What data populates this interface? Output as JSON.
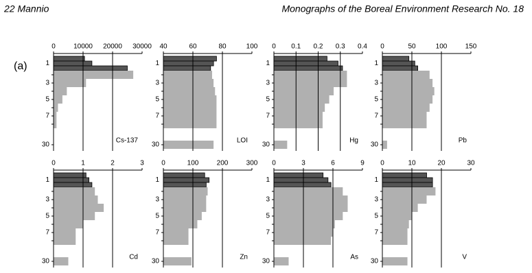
{
  "header": {
    "left": "22  Mannio",
    "right": "Monographs of the Boreal Environment Research No. 18"
  },
  "panel_label": "(a)",
  "chart_data": [
    {
      "type": "bar",
      "horizontal": true,
      "label": "Cs-137",
      "categories": [
        null,
        "1",
        null,
        null,
        "3",
        null,
        "5",
        null,
        "7",
        null,
        "30"
      ],
      "values": [
        10500,
        13000,
        25000,
        27000,
        11000,
        4500,
        3000,
        1500,
        1000,
        1000,
        0
      ],
      "colors": [
        "#555555",
        "#555555",
        "#555555",
        "#b0b0b0",
        "#b0b0b0",
        "#b0b0b0",
        "#b0b0b0",
        "#b0b0b0",
        "#b0b0b0",
        "#b0b0b0",
        "#b0b0b0"
      ],
      "xlim": [
        0,
        30000
      ],
      "xticks": [
        0,
        10000,
        20000,
        30000
      ],
      "grid": true
    },
    {
      "type": "bar",
      "horizontal": true,
      "label": "LOI",
      "categories": [
        null,
        "1",
        null,
        null,
        "3",
        null,
        "5",
        null,
        "7",
        null,
        "30"
      ],
      "values": [
        76,
        74,
        72,
        73,
        74,
        75,
        76,
        76,
        76,
        76,
        74
      ],
      "colors": [
        "#555555",
        "#555555",
        "#555555",
        "#b0b0b0",
        "#b0b0b0",
        "#b0b0b0",
        "#b0b0b0",
        "#b0b0b0",
        "#b0b0b0",
        "#b0b0b0",
        "#b0b0b0"
      ],
      "xlim": [
        40,
        100
      ],
      "xticks": [
        40,
        60,
        80,
        100
      ],
      "grid": true
    },
    {
      "type": "bar",
      "horizontal": true,
      "label": "Hg",
      "categories": [
        null,
        "1",
        null,
        null,
        "3",
        null,
        "5",
        null,
        "7",
        null,
        "30"
      ],
      "values": [
        0.24,
        0.29,
        0.31,
        0.33,
        0.33,
        0.27,
        0.25,
        0.23,
        0.22,
        0.22,
        0.06
      ],
      "colors": [
        "#555555",
        "#555555",
        "#555555",
        "#b0b0b0",
        "#b0b0b0",
        "#b0b0b0",
        "#b0b0b0",
        "#b0b0b0",
        "#b0b0b0",
        "#b0b0b0",
        "#b0b0b0"
      ],
      "xlim": [
        0,
        0.4
      ],
      "xticks": [
        0,
        0.1,
        0.2,
        0.3,
        0.4
      ],
      "grid": true
    },
    {
      "type": "bar",
      "horizontal": true,
      "label": "Pb",
      "categories": [
        null,
        "1",
        null,
        null,
        "3",
        null,
        "5",
        null,
        "7",
        null,
        "30"
      ],
      "values": [
        45,
        55,
        60,
        80,
        85,
        88,
        85,
        80,
        75,
        75,
        8
      ],
      "colors": [
        "#555555",
        "#555555",
        "#555555",
        "#b0b0b0",
        "#b0b0b0",
        "#b0b0b0",
        "#b0b0b0",
        "#b0b0b0",
        "#b0b0b0",
        "#b0b0b0",
        "#b0b0b0"
      ],
      "xlim": [
        0,
        150
      ],
      "xticks": [
        0,
        50,
        100,
        150
      ],
      "grid": true
    },
    {
      "type": "bar",
      "horizontal": true,
      "label": "Cd",
      "categories": [
        null,
        "1",
        null,
        null,
        "3",
        null,
        "5",
        null,
        "7",
        null,
        "30"
      ],
      "values": [
        1.1,
        1.2,
        1.3,
        1.4,
        1.5,
        1.7,
        1.4,
        1.0,
        0.75,
        0.75,
        0.5
      ],
      "colors": [
        "#555555",
        "#555555",
        "#555555",
        "#b0b0b0",
        "#b0b0b0",
        "#b0b0b0",
        "#b0b0b0",
        "#b0b0b0",
        "#b0b0b0",
        "#b0b0b0",
        "#b0b0b0"
      ],
      "xlim": [
        0,
        3
      ],
      "xticks": [
        0,
        1,
        2,
        3
      ],
      "grid": true
    },
    {
      "type": "bar",
      "horizontal": true,
      "label": "Zn",
      "categories": [
        null,
        "1",
        null,
        null,
        "3",
        null,
        "5",
        null,
        "7",
        null,
        "30"
      ],
      "values": [
        140,
        155,
        145,
        150,
        145,
        145,
        130,
        115,
        85,
        85,
        95
      ],
      "colors": [
        "#555555",
        "#555555",
        "#555555",
        "#b0b0b0",
        "#b0b0b0",
        "#b0b0b0",
        "#b0b0b0",
        "#b0b0b0",
        "#b0b0b0",
        "#b0b0b0",
        "#b0b0b0"
      ],
      "xlim": [
        0,
        300
      ],
      "xticks": [
        0,
        100,
        200,
        300
      ],
      "grid": true
    },
    {
      "type": "bar",
      "horizontal": true,
      "label": "As",
      "categories": [
        null,
        "1",
        null,
        null,
        "3",
        null,
        "5",
        null,
        "7",
        null,
        "30"
      ],
      "values": [
        5,
        5.5,
        5.8,
        7,
        7.5,
        7.5,
        7,
        6.2,
        6,
        5.8,
        1.5
      ],
      "colors": [
        "#555555",
        "#555555",
        "#555555",
        "#b0b0b0",
        "#b0b0b0",
        "#b0b0b0",
        "#b0b0b0",
        "#b0b0b0",
        "#b0b0b0",
        "#b0b0b0",
        "#b0b0b0"
      ],
      "xlim": [
        0,
        9
      ],
      "xticks": [
        0,
        3,
        6,
        9
      ],
      "grid": true
    },
    {
      "type": "bar",
      "horizontal": true,
      "label": "V",
      "categories": [
        null,
        "1",
        null,
        null,
        "3",
        null,
        "5",
        null,
        "7",
        null,
        "30"
      ],
      "values": [
        15,
        17,
        17,
        18,
        15,
        12,
        10,
        9,
        8.5,
        8.5,
        8.5
      ],
      "colors": [
        "#555555",
        "#555555",
        "#555555",
        "#b0b0b0",
        "#b0b0b0",
        "#b0b0b0",
        "#b0b0b0",
        "#b0b0b0",
        "#b0b0b0",
        "#b0b0b0",
        "#b0b0b0"
      ],
      "xlim": [
        0,
        30
      ],
      "xticks": [
        0,
        10,
        20,
        30
      ],
      "grid": true
    }
  ]
}
